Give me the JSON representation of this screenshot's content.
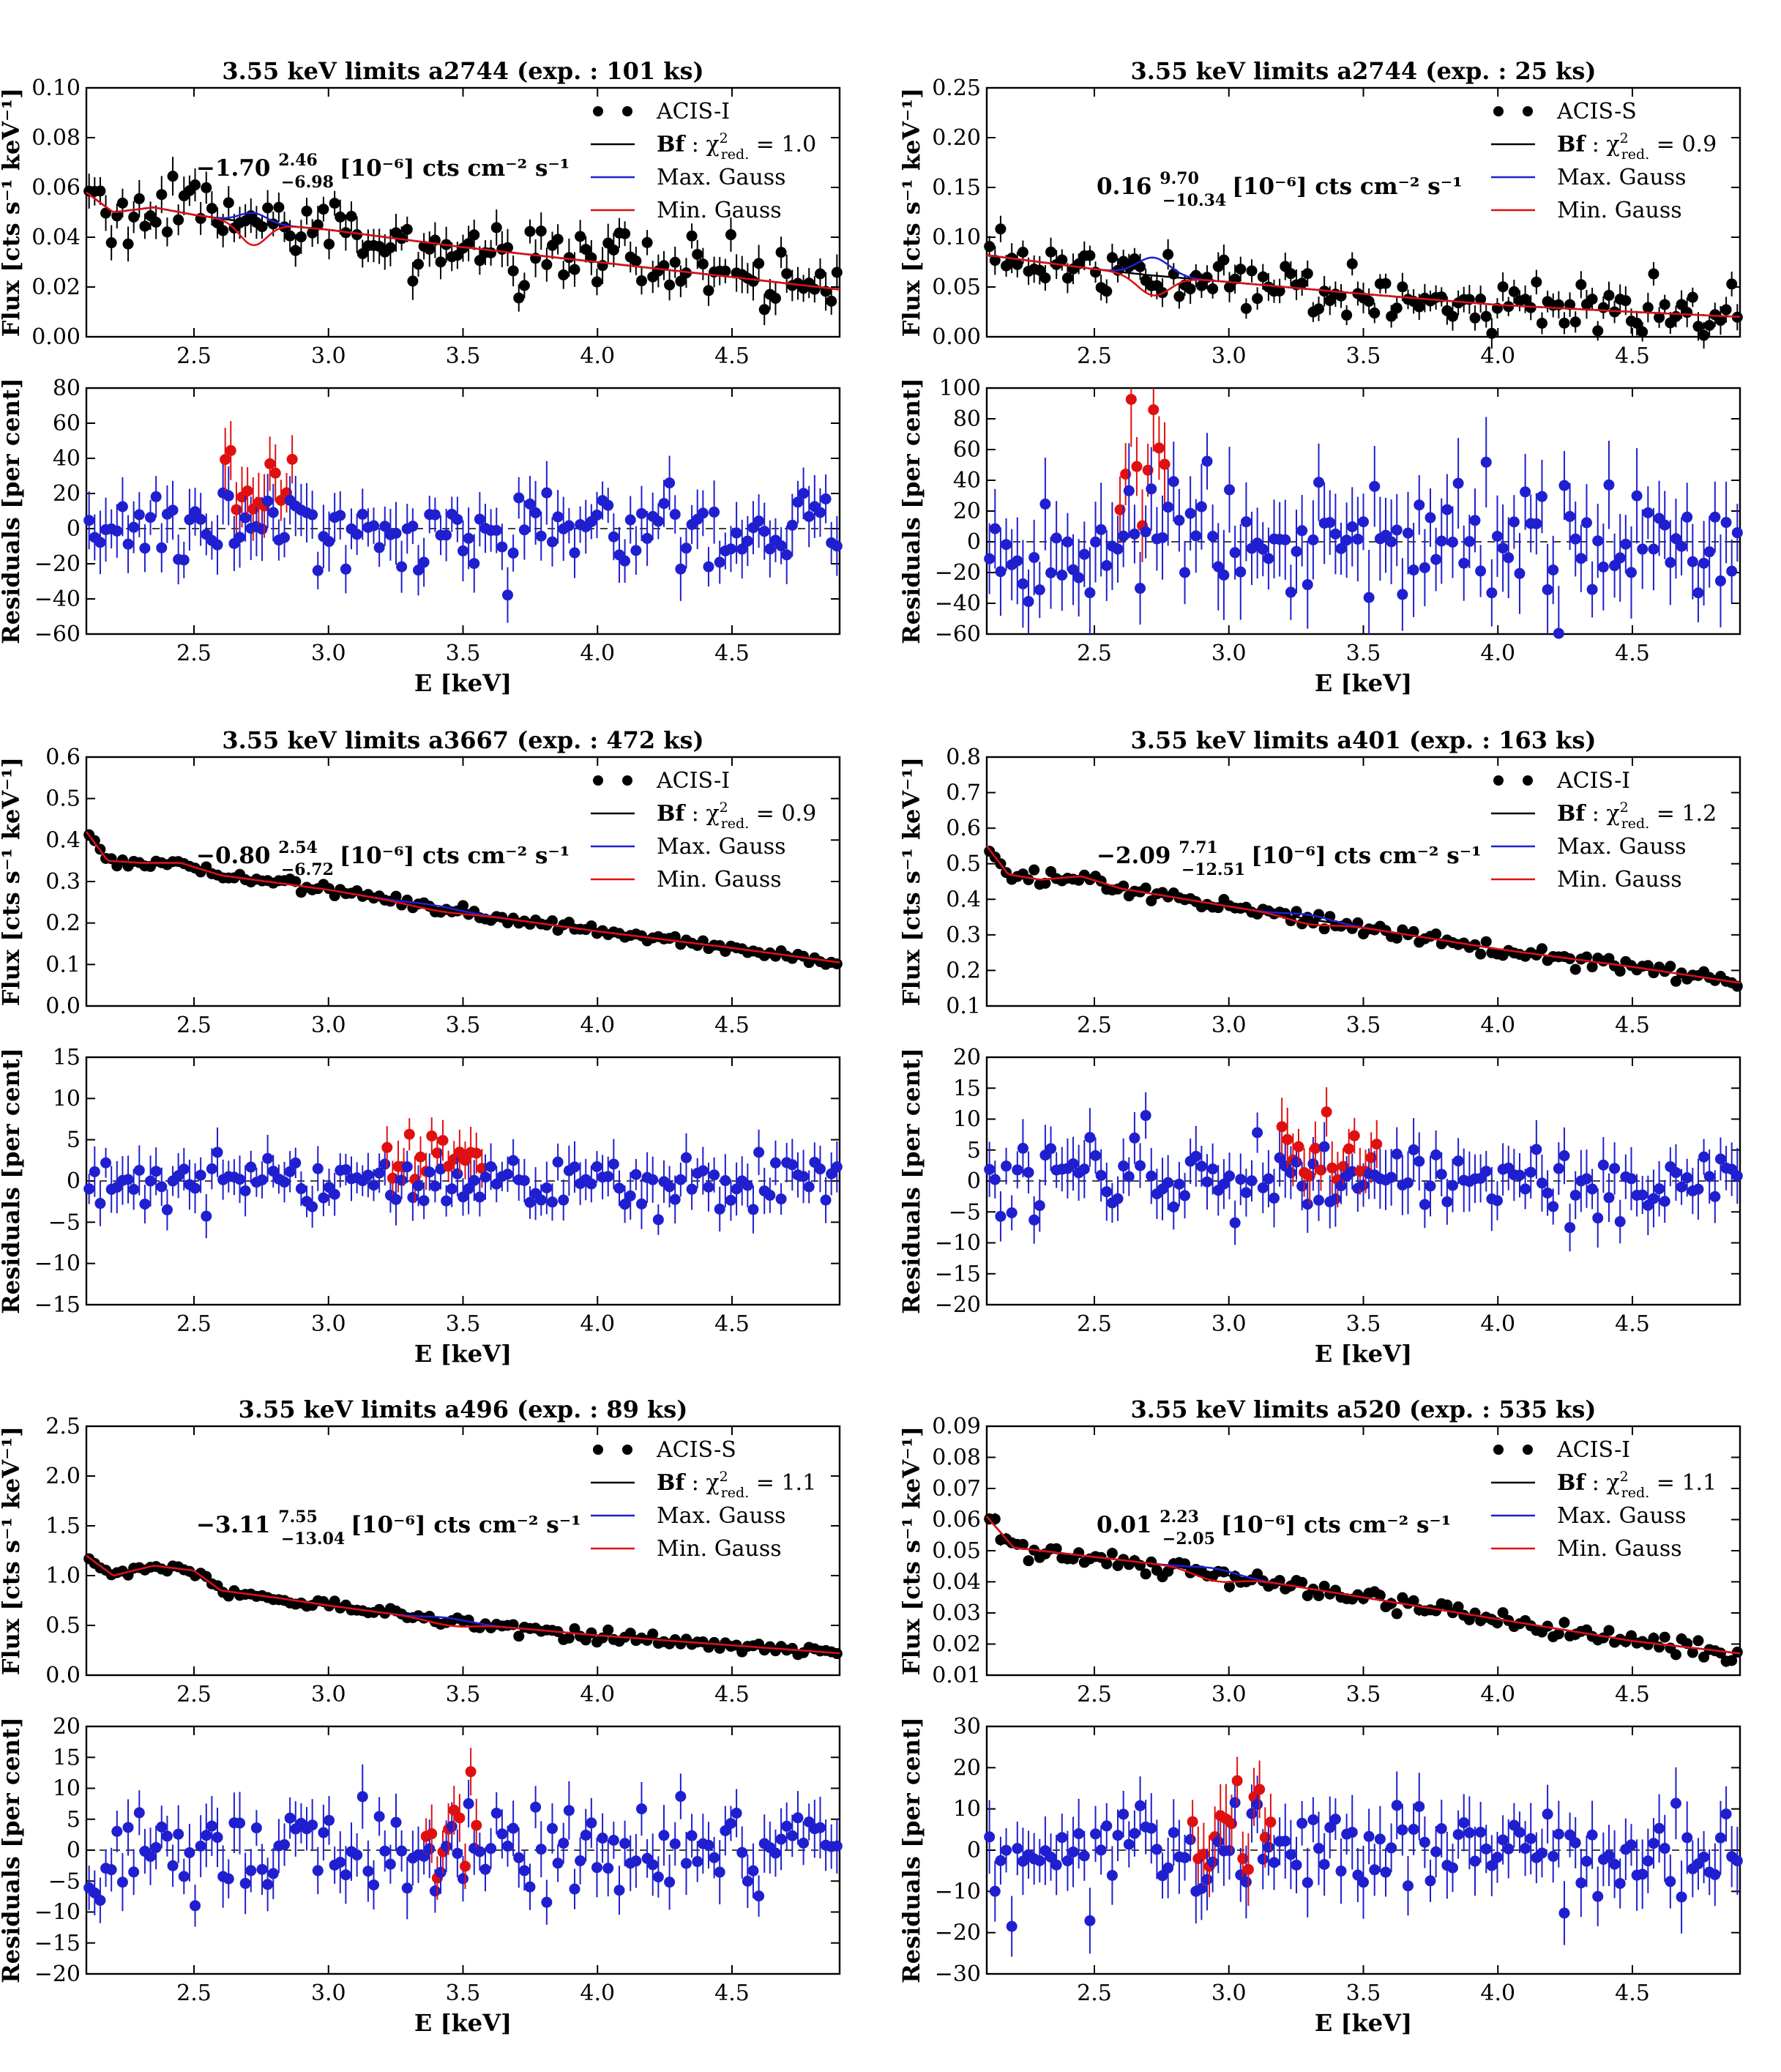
{
  "figure": {
    "description_free": true
  },
  "colors": {
    "data": "#000000",
    "bestfit": "#000000",
    "max_gauss": "#1f1fd0",
    "min_gauss": "#e01010",
    "residual_points": "#1f1fd0",
    "residual_highlight": "#e01010"
  },
  "shared": {
    "xlabel": "E [keV]",
    "flux_ylabel": "Flux [cts s⁻¹ keV⁻¹]",
    "residual_ylabel": "Residuals [per cent]",
    "legend": [
      "Bf",
      "Max. Gauss",
      "Min. Gauss"
    ],
    "xticks": [
      "2.5",
      "3.0",
      "3.5",
      "4.0",
      "4.5"
    ],
    "xlim": [
      2.1,
      4.9
    ]
  },
  "chart_data": [
    {
      "type": "scatter",
      "title": "3.55 keV limits a2744 (exp. : 101 ks)",
      "instrument": "ACIS-I",
      "chi2": "1.0",
      "annotation": {
        "value": "−1.70",
        "upper": "2.46",
        "lower": "−6.98",
        "unit": "[10⁻⁶] cts cm⁻² s⁻¹"
      },
      "flux": {
        "ylim": [
          0.0,
          0.1
        ],
        "yticks": [
          "0.00",
          "0.02",
          "0.04",
          "0.06",
          "0.08",
          "0.10"
        ],
        "model_x": [
          2.1,
          2.2,
          2.35,
          2.5,
          2.7,
          3.0,
          3.5,
          4.0,
          4.5,
          4.9
        ],
        "model_y": [
          0.058,
          0.05,
          0.052,
          0.049,
          0.046,
          0.043,
          0.036,
          0.03,
          0.024,
          0.019
        ],
        "noise": 0.006
      },
      "gauss": {
        "center": 2.72,
        "width": 0.05,
        "max_amp": 0.004,
        "min_amp": -0.009
      },
      "residual": {
        "ylim": [
          -60,
          80
        ],
        "yticks": [
          "−60",
          "−40",
          "−20",
          "0",
          "20",
          "40",
          "60",
          "80"
        ],
        "sigma": 14,
        "hl_range": [
          2.6,
          2.87
        ],
        "hl_shift": 18
      }
    },
    {
      "type": "scatter",
      "title": "3.55 keV limits a2744 (exp. : 25 ks)",
      "instrument": "ACIS-S",
      "chi2": "0.9",
      "annotation": {
        "value": "0.16",
        "upper": "9.70",
        "lower": "−10.34",
        "unit": "[10⁻⁶] cts cm⁻² s⁻¹"
      },
      "flux": {
        "ylim": [
          0.0,
          0.25
        ],
        "yticks": [
          "0.00",
          "0.05",
          "0.10",
          "0.15",
          "0.20",
          "0.25"
        ],
        "model_x": [
          2.1,
          2.3,
          2.5,
          2.7,
          3.0,
          3.5,
          4.0,
          4.5,
          4.9
        ],
        "model_y": [
          0.082,
          0.075,
          0.068,
          0.062,
          0.055,
          0.043,
          0.032,
          0.025,
          0.02
        ],
        "noise": 0.012
      },
      "gauss": {
        "center": 2.72,
        "width": 0.06,
        "max_amp": 0.018,
        "min_amp": -0.02
      },
      "residual": {
        "ylim": [
          -60,
          100
        ],
        "yticks": [
          "−60",
          "−40",
          "−20",
          "0",
          "20",
          "40",
          "60",
          "80",
          "100"
        ],
        "sigma": 24,
        "hl_range": [
          2.58,
          2.76
        ],
        "hl_shift": 40
      }
    },
    {
      "type": "scatter",
      "title": "3.55 keV limits a3667 (exp. : 472 ks)",
      "instrument": "ACIS-I",
      "chi2": "0.9",
      "annotation": {
        "value": "−0.80",
        "upper": "2.54",
        "lower": "−6.72",
        "unit": "[10⁻⁶] cts cm⁻² s⁻¹"
      },
      "flux": {
        "ylim": [
          0.0,
          0.6
        ],
        "yticks": [
          "0.0",
          "0.1",
          "0.2",
          "0.3",
          "0.4",
          "0.5",
          "0.6"
        ],
        "model_x": [
          2.1,
          2.18,
          2.3,
          2.45,
          2.6,
          3.0,
          3.5,
          4.0,
          4.5,
          4.9
        ],
        "model_y": [
          0.42,
          0.35,
          0.345,
          0.345,
          0.315,
          0.28,
          0.225,
          0.18,
          0.14,
          0.105
        ],
        "noise": 0.006
      },
      "gauss": {
        "center": 3.4,
        "width": 0.1,
        "max_amp": 0.006,
        "min_amp": -0.006
      },
      "residual": {
        "ylim": [
          -15,
          15
        ],
        "yticks": [
          "−15",
          "−10",
          "−5",
          "0",
          "5",
          "10",
          "15"
        ],
        "sigma": 2.5,
        "hl_range": [
          3.2,
          3.58
        ],
        "hl_shift": 3
      },
      "residual_dashed": false
    },
    {
      "type": "scatter",
      "title": "3.55 keV limits a401 (exp. : 163 ks)",
      "instrument": "ACIS-I",
      "chi2": "1.2",
      "annotation": {
        "value": "−2.09",
        "upper": "7.71",
        "lower": "−12.51",
        "unit": "[10⁻⁶] cts cm⁻² s⁻¹"
      },
      "flux": {
        "ylim": [
          0.1,
          0.8
        ],
        "yticks": [
          "0.1",
          "0.2",
          "0.3",
          "0.4",
          "0.5",
          "0.6",
          "0.7",
          "0.8"
        ],
        "model_x": [
          2.1,
          2.18,
          2.3,
          2.45,
          2.6,
          3.0,
          3.5,
          4.0,
          4.5,
          4.9
        ],
        "model_y": [
          0.55,
          0.47,
          0.455,
          0.465,
          0.43,
          0.38,
          0.32,
          0.26,
          0.21,
          0.165
        ],
        "noise": 0.01
      },
      "gauss": {
        "center": 3.3,
        "width": 0.08,
        "max_amp": 0.012,
        "min_amp": -0.014
      },
      "residual": {
        "ylim": [
          -20,
          20
        ],
        "yticks": [
          "−20",
          "−15",
          "−10",
          "−5",
          "0",
          "5",
          "10",
          "15",
          "20"
        ],
        "sigma": 4,
        "hl_range": [
          3.18,
          3.55
        ],
        "hl_shift": 4
      }
    },
    {
      "type": "scatter",
      "title": "3.55 keV limits a496 (exp. : 89 ks)",
      "instrument": "ACIS-S",
      "chi2": "1.1",
      "annotation": {
        "value": "−3.11",
        "upper": "7.55",
        "lower": "−13.04",
        "unit": "[10⁻⁶] cts cm⁻² s⁻¹"
      },
      "flux": {
        "ylim": [
          0.0,
          2.5
        ],
        "yticks": [
          "0.0",
          "0.5",
          "1.0",
          "1.5",
          "2.0",
          "2.5"
        ],
        "model_x": [
          2.1,
          2.2,
          2.35,
          2.5,
          2.6,
          2.8,
          3.0,
          3.5,
          4.0,
          4.5,
          4.9
        ],
        "model_y": [
          1.2,
          1.0,
          1.1,
          1.05,
          0.85,
          0.78,
          0.7,
          0.52,
          0.4,
          0.3,
          0.22
        ],
        "noise": 0.025
      },
      "gauss": {
        "center": 3.45,
        "width": 0.08,
        "max_amp": 0.035,
        "min_amp": -0.04
      },
      "residual": {
        "ylim": [
          -20,
          20
        ],
        "yticks": [
          "−20",
          "−15",
          "−10",
          "−5",
          "0",
          "5",
          "10",
          "15",
          "20"
        ],
        "sigma": 4,
        "hl_range": [
          3.35,
          3.55
        ],
        "hl_shift": 4
      }
    },
    {
      "type": "scatter",
      "title": "3.55 keV limits a520 (exp. : 535 ks)",
      "instrument": "ACIS-I",
      "chi2": "1.1",
      "annotation": {
        "value": "0.01",
        "upper": "2.23",
        "lower": "−2.05",
        "unit": "[10⁻⁶] cts cm⁻² s⁻¹"
      },
      "flux": {
        "ylim": [
          0.01,
          0.09
        ],
        "yticks": [
          "0.01",
          "0.02",
          "0.03",
          "0.04",
          "0.05",
          "0.06",
          "0.07",
          "0.08",
          "0.09"
        ],
        "model_x": [
          2.1,
          2.2,
          2.4,
          2.6,
          2.8,
          3.0,
          3.5,
          4.0,
          4.5,
          4.9
        ],
        "model_y": [
          0.061,
          0.051,
          0.049,
          0.047,
          0.045,
          0.042,
          0.035,
          0.028,
          0.021,
          0.017
        ],
        "noise": 0.0015
      },
      "gauss": {
        "center": 2.95,
        "width": 0.08,
        "max_amp": 0.0015,
        "min_amp": -0.0025
      },
      "residual": {
        "ylim": [
          -30,
          30
        ],
        "yticks": [
          "−30",
          "−20",
          "−10",
          "0",
          "10",
          "20",
          "30"
        ],
        "sigma": 7,
        "hl_range": [
          2.85,
          3.15
        ],
        "hl_shift": 6
      }
    }
  ]
}
